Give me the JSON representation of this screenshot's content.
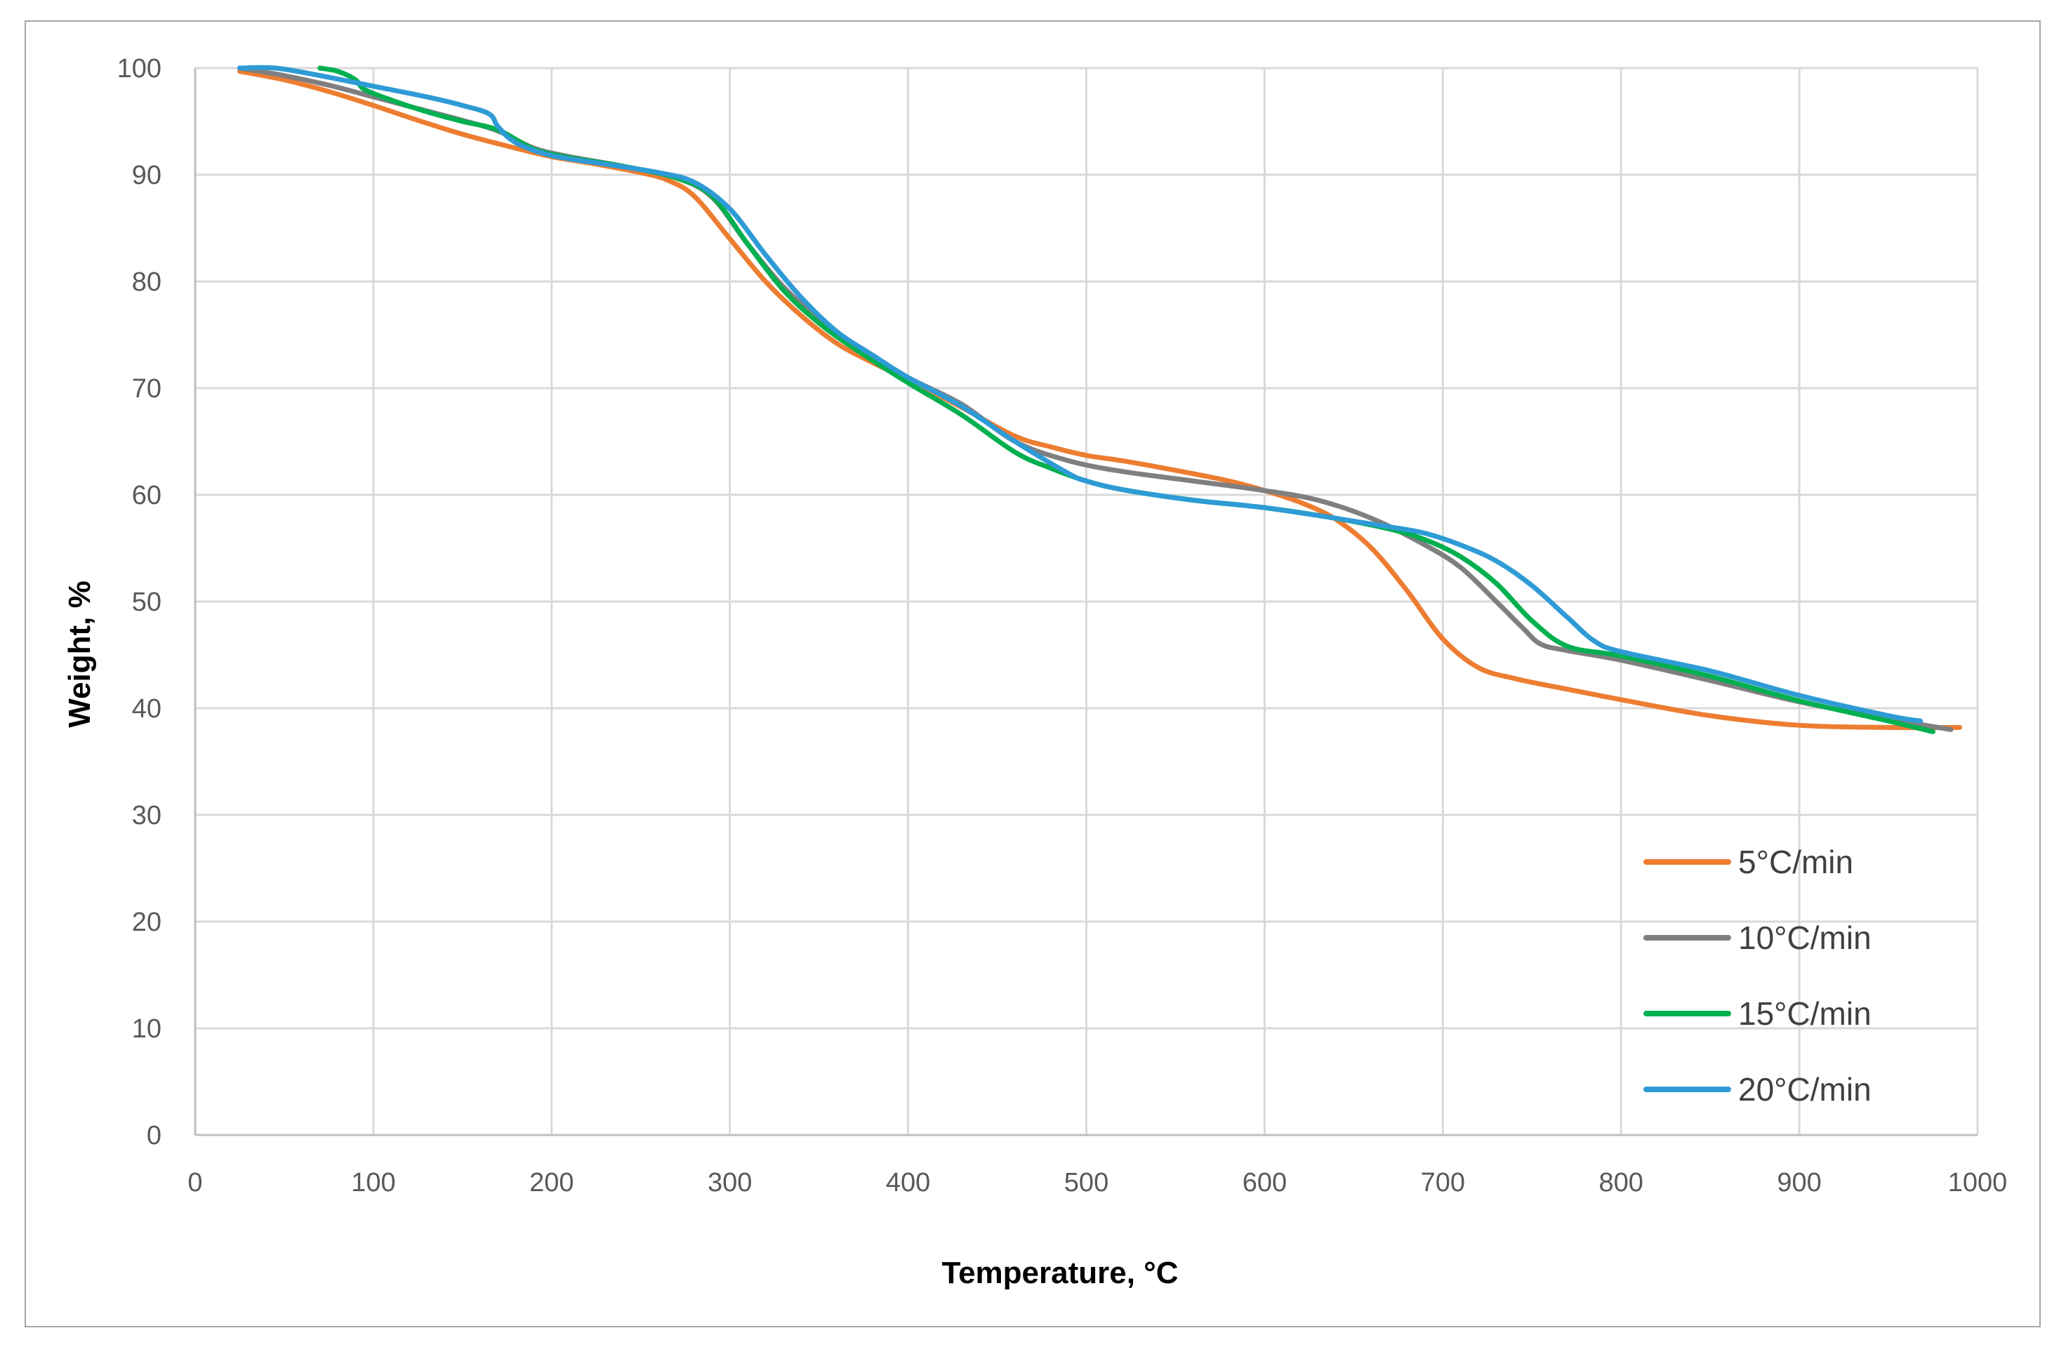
{
  "chart_data": {
    "type": "line",
    "title": "",
    "xlabel": "Temperature, °C",
    "ylabel": "Weight, %",
    "xlim": [
      0,
      1000
    ],
    "ylim": [
      0,
      100
    ],
    "xticks": [
      0,
      100,
      200,
      300,
      400,
      500,
      600,
      700,
      800,
      900,
      1000
    ],
    "yticks": [
      0,
      10,
      20,
      30,
      40,
      50,
      60,
      70,
      80,
      90,
      100
    ],
    "grid": true,
    "legend_position": "bottom-right",
    "series": [
      {
        "name": "5°C/min",
        "color": "#ED7D31",
        "x": [
          25,
          50,
          75,
          100,
          125,
          150,
          175,
          200,
          225,
          250,
          265,
          280,
          300,
          320,
          340,
          360,
          380,
          400,
          430,
          460,
          480,
          500,
          520,
          550,
          580,
          600,
          620,
          640,
          660,
          680,
          700,
          720,
          740,
          760,
          800,
          850,
          900,
          950,
          990
        ],
        "values": [
          99.7,
          98.9,
          97.8,
          96.5,
          95.1,
          93.8,
          92.7,
          91.7,
          91.0,
          90.2,
          89.5,
          88.0,
          84.0,
          80.0,
          76.8,
          74.2,
          72.4,
          70.8,
          68.2,
          65.5,
          64.5,
          63.7,
          63.2,
          62.3,
          61.3,
          60.4,
          59.3,
          57.7,
          55.0,
          51.0,
          46.5,
          43.8,
          42.8,
          42.1,
          40.8,
          39.3,
          38.4,
          38.2,
          38.2
        ]
      },
      {
        "name": "10°C/min",
        "color": "#7F7F7F",
        "x": [
          25,
          50,
          75,
          100,
          125,
          150,
          170,
          190,
          210,
          240,
          270,
          290,
          310,
          330,
          350,
          370,
          400,
          430,
          460,
          490,
          520,
          560,
          600,
          630,
          660,
          690,
          710,
          730,
          745,
          755,
          770,
          800,
          850,
          900,
          950,
          985
        ],
        "values": [
          100.0,
          99.3,
          98.4,
          97.3,
          96.2,
          95.1,
          94.1,
          92.5,
          91.7,
          90.8,
          89.7,
          87.9,
          83.5,
          79.5,
          76.5,
          74.0,
          71.0,
          68.5,
          65.0,
          63.2,
          62.2,
          61.3,
          60.4,
          59.5,
          57.8,
          55.3,
          53.2,
          50.0,
          47.5,
          46.0,
          45.4,
          44.5,
          42.6,
          40.6,
          39.0,
          38.0
        ]
      },
      {
        "name": "15°C/min",
        "color": "#00B050",
        "x": [
          70,
          80,
          90,
          95,
          110,
          130,
          150,
          170,
          190,
          210,
          240,
          270,
          290,
          310,
          330,
          350,
          370,
          400,
          430,
          460,
          480,
          500,
          520,
          560,
          600,
          640,
          670,
          690,
          710,
          730,
          750,
          770,
          800,
          850,
          900,
          950,
          975
        ],
        "values": [
          100.0,
          99.7,
          98.9,
          98.0,
          97.0,
          95.9,
          95.0,
          94.2,
          92.4,
          91.6,
          90.8,
          89.7,
          88.0,
          83.5,
          79.2,
          76.1,
          73.7,
          70.5,
          67.5,
          64.0,
          62.5,
          61.3,
          60.5,
          59.5,
          58.8,
          57.8,
          56.8,
          55.8,
          54.2,
          51.7,
          48.2,
          45.8,
          44.9,
          43.0,
          40.7,
          38.8,
          37.8
        ]
      },
      {
        "name": "20°C/min",
        "color": "#2E9BD6",
        "x": [
          25,
          45,
          70,
          100,
          130,
          150,
          165,
          170,
          180,
          200,
          230,
          260,
          280,
          300,
          320,
          340,
          360,
          380,
          400,
          430,
          460,
          490,
          500,
          520,
          560,
          600,
          640,
          670,
          690,
          710,
          730,
          750,
          770,
          785,
          800,
          850,
          900,
          950,
          968
        ],
        "values": [
          100.0,
          100.0,
          99.3,
          98.3,
          97.3,
          96.5,
          95.7,
          94.5,
          93.0,
          91.8,
          91.0,
          90.2,
          89.3,
          86.8,
          82.5,
          78.5,
          75.3,
          73.1,
          71.0,
          68.3,
          65.0,
          62.0,
          61.3,
          60.5,
          59.5,
          58.8,
          57.8,
          57.0,
          56.4,
          55.3,
          53.8,
          51.5,
          48.5,
          46.3,
          45.3,
          43.5,
          41.2,
          39.3,
          38.8
        ]
      }
    ]
  }
}
